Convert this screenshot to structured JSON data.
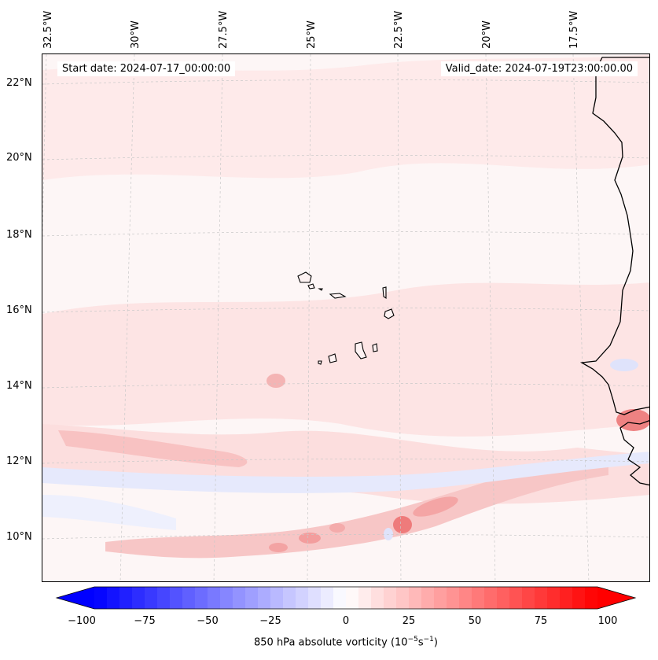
{
  "map": {
    "start_date": "Start date: 2024-07-17_00:00:00",
    "valid_date": "Valid_date: 2024-07-19T23:00:00.00",
    "longitude_labels": [
      "32.5°W",
      "30°W",
      "27.5°W",
      "25°W",
      "22.5°W",
      "20°W",
      "17.5°W"
    ],
    "latitude_labels": [
      "22°N",
      "20°N",
      "18°N",
      "16°N",
      "14°N",
      "12°N",
      "10°N"
    ],
    "field_colors": {
      "background": "#fdf6f6",
      "light_positive": "#fde3e3",
      "medium_positive": "#f9bcbc",
      "strong_positive": "#f07c7c",
      "light_negative": "#eef0fd",
      "medium_negative": "#d8dcfb",
      "coastline": "#000000",
      "gridline": "#b8b8b8"
    }
  },
  "colorbar": {
    "ticks": [
      "−100",
      "−75",
      "−50",
      "−25",
      "0",
      "25",
      "50",
      "75",
      "100"
    ],
    "label": "850 hPa absolute vorticity (10",
    "label_exp1": "−5",
    "label_mid": "s",
    "label_exp2": "−1",
    "label_end": ")",
    "min_value": -100,
    "max_value": 100,
    "num_levels": 40,
    "min_color": "#0000ff",
    "mid_color": "#ffffff",
    "max_color": "#ff0000"
  }
}
